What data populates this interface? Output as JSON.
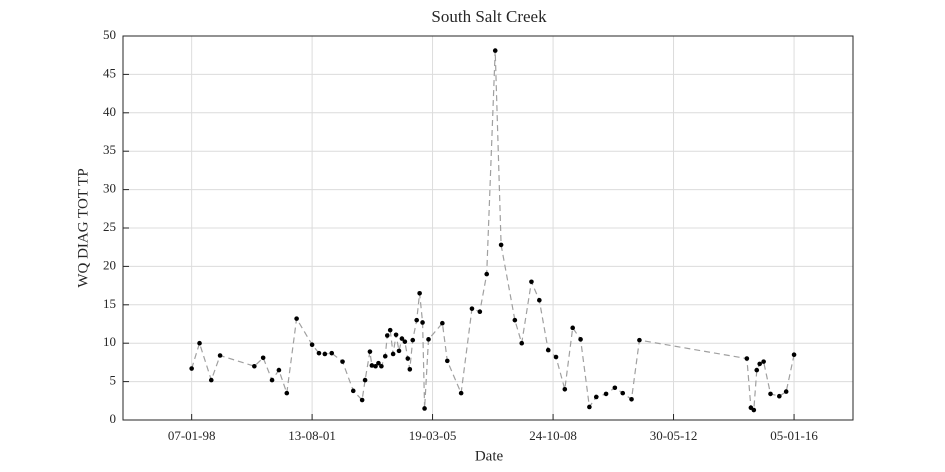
{
  "chart_data": {
    "type": "line",
    "title": "South Salt Creek",
    "x_label": "Date",
    "y_label": "WQ DIAG TOT TP",
    "x": [
      "07-01-98",
      "03-04-98",
      "09-08-98",
      "13-11-98",
      "22-11-99",
      "26-02-00",
      "02-06-00",
      "16-08-00",
      "10-11-00",
      "25-02-01",
      "13-08-01",
      "27-10-01",
      "30-12-01",
      "15-03-02",
      "11-07-02",
      "05-11-02",
      "10-02-03",
      "14-03-03",
      "06-05-03",
      "27-05-03",
      "06-07-03",
      "07-08-03",
      "08-09-03",
      "20-10-03",
      "11-11-03",
      "13-12-03",
      "14-01-04",
      "15-02-04",
      "18-03-04",
      "19-04-04",
      "21-05-04",
      "22-06-04",
      "14-07-04",
      "15-08-04",
      "27-09-04",
      "29-10-04",
      "30-11-04",
      "22-12-04",
      "03-02-05",
      "04-07-05",
      "27-08-05",
      "25-01-06",
      "23-05-06",
      "17-08-06",
      "31-10-06",
      "01-02-07",
      "06-04-07",
      "03-09-07",
      "17-11-07",
      "02-03-08",
      "27-05-08",
      "01-09-08",
      "25-11-08",
      "01-03-09",
      "26-05-09",
      "20-08-09",
      "24-11-09",
      "07-02-10",
      "25-05-10",
      "29-08-10",
      "23-11-10",
      "27-02-11",
      "24-05-11",
      "08-08-14",
      "21-09-14",
      "23-10-14",
      "24-11-14",
      "26-12-14",
      "07-02-15",
      "23-04-15",
      "28-07-15",
      "11-10-15",
      "05-01-16"
    ],
    "values": [
      6.7,
      10,
      5.2,
      8.4,
      7,
      8.1,
      5.2,
      6.5,
      3.5,
      13.2,
      9.8,
      8.7,
      8.6,
      8.7,
      7.6,
      3.8,
      2.6,
      5.2,
      8.9,
      7.1,
      7.0,
      7.4,
      7.0,
      8.3,
      11,
      11.7,
      8.6,
      11.1,
      9.0,
      10.6,
      10.2,
      8.0,
      6.6,
      10.4,
      13,
      16.5,
      12.7,
      1.5,
      10.5,
      12.6,
      7.7,
      3.5,
      14.5,
      14.1,
      19,
      48.1,
      22.8,
      13,
      10,
      18,
      15.6,
      9.1,
      8.2,
      4,
      12,
      10.5,
      1.7,
      3,
      3.4,
      4.2,
      3.5,
      2.7,
      10.4,
      8,
      1.6,
      1.3,
      6.5,
      7.3,
      7.6,
      3.4,
      3.1,
      3.7,
      8.5
    ],
    "color": "#000000",
    "line_color": "#a0a0a0",
    "line_style": "dashed",
    "xlim": [
      "20-12-95",
      "09-10-17"
    ],
    "xticks": [
      "07-01-98",
      "13-08-01",
      "19-03-05",
      "24-10-08",
      "30-05-12",
      "05-01-16"
    ],
    "ylim": [
      0,
      50
    ],
    "yticks": [
      0,
      5,
      10,
      15,
      20,
      25,
      30,
      35,
      40,
      45,
      50
    ],
    "grid": true
  }
}
